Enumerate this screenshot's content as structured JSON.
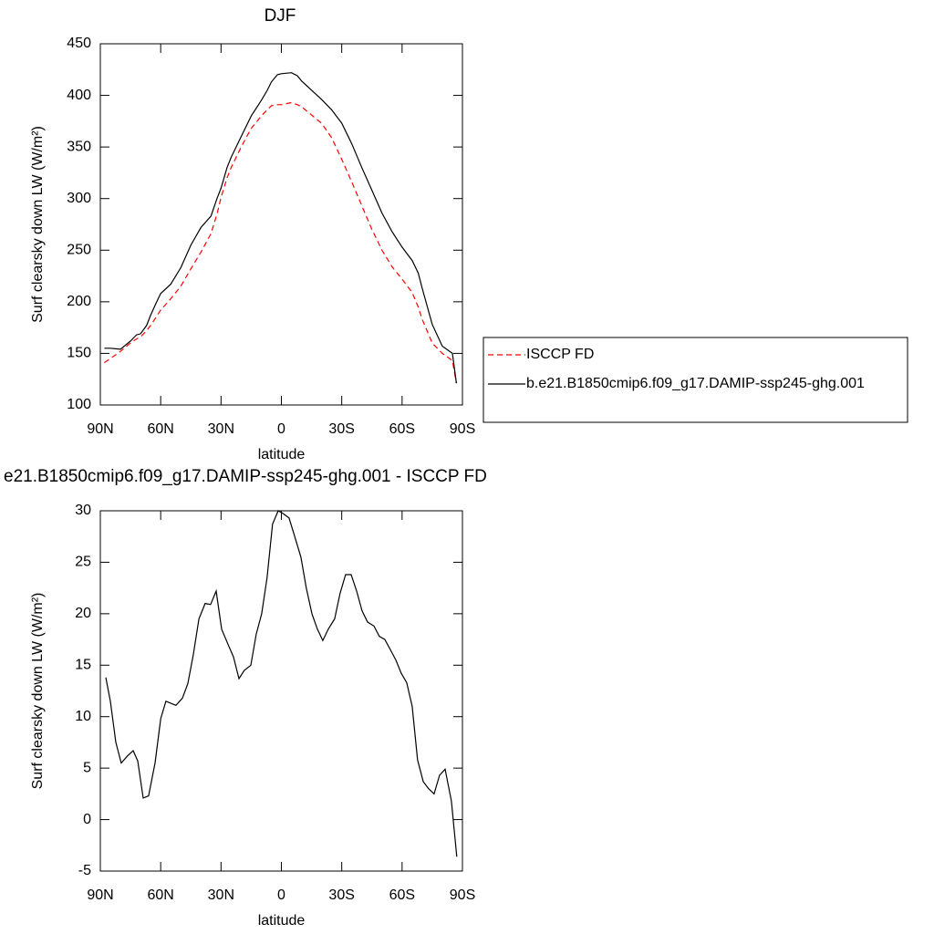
{
  "chart_data": [
    {
      "type": "line",
      "title": "DJF",
      "xlabel": "latitude",
      "ylabel": "Surf clearsky down LW (W/m²)",
      "xlim": [
        90,
        -90
      ],
      "ylim": [
        100,
        450
      ],
      "xticks": [
        {
          "value": 90,
          "label": "90N"
        },
        {
          "value": 60,
          "label": "60N"
        },
        {
          "value": 30,
          "label": "30N"
        },
        0,
        {
          "value": -30,
          "label": "30S"
        },
        {
          "value": -60,
          "label": "60S"
        },
        {
          "value": -90,
          "label": "90S"
        }
      ],
      "yticks": [
        100,
        150,
        200,
        250,
        300,
        350,
        400,
        450
      ],
      "legend": "right",
      "x": [
        88,
        85,
        80,
        75,
        72,
        70,
        67,
        65,
        62,
        60,
        55,
        50,
        45,
        40,
        35,
        32,
        30,
        27,
        25,
        20,
        15,
        10,
        7,
        5,
        2,
        0,
        -5,
        -8,
        -10,
        -15,
        -20,
        -25,
        -30,
        -35,
        -40,
        -45,
        -50,
        -55,
        -60,
        -65,
        -68,
        -70,
        -75,
        -80,
        -85,
        -87
      ],
      "series": [
        {
          "name": "ISCCP FD",
          "color": "#ff0000",
          "dashed": true,
          "values": [
            141,
            145,
            152,
            160,
            164,
            166,
            172,
            177,
            186,
            192,
            203,
            215,
            232,
            248,
            266,
            285,
            301,
            320,
            330,
            350,
            368,
            380,
            386,
            390,
            391,
            391,
            393,
            391,
            389,
            381,
            373,
            359,
            338,
            316,
            293,
            270,
            250,
            234,
            222,
            209,
            195,
            183,
            160,
            150,
            143,
            121
          ]
        },
        {
          "name": "b.e21.B1850cmip6.f09_g17.DAMIP-ssp245-ghg.001",
          "color": "#000000",
          "dashed": false,
          "values": [
            155,
            155,
            154,
            162,
            168,
            169,
            177,
            187,
            200,
            208,
            217,
            233,
            255,
            272,
            283,
            300,
            310,
            330,
            340,
            360,
            380,
            395,
            405,
            413,
            420,
            421,
            422,
            419,
            414,
            405,
            396,
            386,
            373,
            353,
            330,
            308,
            286,
            268,
            253,
            240,
            228,
            213,
            178,
            157,
            150,
            121
          ]
        }
      ]
    },
    {
      "type": "line",
      "title": "e21.B1850cmip6.f09_g17.DAMIP-ssp245-ghg.001 - ISCCP FD",
      "xlabel": "latitude",
      "ylabel": "Surf clearsky down LW (W/m²)",
      "xlim": [
        90,
        -90
      ],
      "ylim": [
        -5,
        30
      ],
      "xticks": [
        {
          "value": 90,
          "label": "90N"
        },
        {
          "value": 60,
          "label": "60N"
        },
        {
          "value": 30,
          "label": "30N"
        },
        0,
        {
          "value": -30,
          "label": "30S"
        },
        {
          "value": -60,
          "label": "60S"
        },
        {
          "value": -90,
          "label": "90S"
        }
      ],
      "yticks": [
        -5,
        0,
        5,
        10,
        15,
        20,
        25,
        30
      ],
      "x": [
        87.3,
        85,
        82.3,
        79.6,
        76.4,
        73.7,
        71.4,
        68.7,
        66,
        62.8,
        60,
        57.4,
        52.4,
        49.2,
        46.5,
        43.8,
        41,
        37.9,
        35.2,
        32.4,
        29.7,
        26.5,
        23.8,
        21.1,
        18.4,
        15.2,
        12.5,
        9.8,
        7.1,
        4.4,
        1.6,
        -1.1,
        -3.8,
        -6.6,
        -9.7,
        -12.4,
        -15.2,
        -17.9,
        -20.6,
        -23.3,
        -26.5,
        -29.2,
        -31.9,
        -34.7,
        -37.4,
        -40.1,
        -42.8,
        -46,
        -48.7,
        -51.4,
        -54.2,
        -56.9,
        -59.6,
        -62.3,
        -65,
        -67.7,
        -70.5,
        -73.2,
        -75.9,
        -78.6,
        -81.4,
        -84.5,
        -87.2
      ],
      "series": [
        {
          "color": "#000000",
          "dashed": false,
          "values": [
            13.8,
            11.5,
            7.5,
            5.5,
            6.2,
            6.7,
            5.7,
            2.1,
            2.3,
            5.5,
            9.8,
            11.5,
            11.1,
            11.8,
            13.2,
            16,
            19.5,
            21,
            20.9,
            22.2,
            18.5,
            17,
            15.8,
            13.7,
            14.5,
            15,
            18,
            20,
            23.5,
            28.7,
            30,
            29.7,
            29.3,
            27.5,
            25.5,
            22.5,
            20,
            18.5,
            17.4,
            18.5,
            19.5,
            22,
            23.8,
            23.8,
            22.2,
            20.3,
            19.2,
            18.8,
            17.8,
            17.5,
            16.5,
            15.5,
            14.2,
            13.3,
            11,
            5.8,
            3.7,
            3,
            2.5,
            4.3,
            4.9,
            1.8,
            -3.6
          ]
        }
      ]
    }
  ]
}
